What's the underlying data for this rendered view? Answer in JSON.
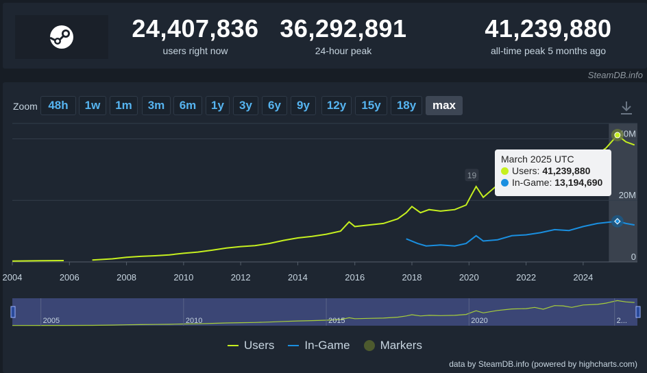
{
  "stats": [
    {
      "value": "24,407,836",
      "label": "users right now"
    },
    {
      "value": "36,292,891",
      "label": "24-hour peak"
    },
    {
      "value": "41,239,880",
      "label": "all-time peak 5 months ago"
    }
  ],
  "attribution_top": "SteamDB.info",
  "zoom": {
    "label": "Zoom",
    "options": [
      "48h",
      "1w",
      "1m",
      "3m",
      "6m",
      "1y",
      "3y",
      "6y",
      "9y",
      "12y",
      "15y",
      "18y",
      "max"
    ],
    "selected": "max"
  },
  "tooltip": {
    "title": "March 2025 UTC",
    "users_label": "Users:",
    "users_value": "41,239,880",
    "ingame_label": "In-Game:",
    "ingame_value": "13,194,690"
  },
  "marker_label": "19",
  "footer": "data by SteamDB.info (powered by highcharts.com)",
  "chart_data": {
    "type": "line",
    "x_ticks": [
      "2004",
      "2006",
      "2008",
      "2010",
      "2012",
      "2014",
      "2016",
      "2018",
      "2020",
      "2022",
      "2024"
    ],
    "y_ticks": [
      "0",
      "20M",
      "40M"
    ],
    "ylim": [
      0,
      45000000
    ],
    "navigator_ticks": [
      "2005",
      "2010",
      "2015",
      "2020",
      "2..."
    ],
    "colors": {
      "users": "#c6f01f",
      "ingame": "#1a8fe0",
      "markers": "#4d5a2e"
    },
    "series": [
      {
        "name": "Users",
        "color": "#c6f01f",
        "points": [
          [
            2004.0,
            0.3
          ],
          [
            2005.0,
            0.4
          ],
          [
            2005.8,
            0.45
          ],
          [
            2006.8,
            0.6
          ],
          [
            2007.5,
            1.0
          ],
          [
            2008.0,
            1.5
          ],
          [
            2008.5,
            1.8
          ],
          [
            2009.0,
            2.0
          ],
          [
            2009.5,
            2.3
          ],
          [
            2010.0,
            2.8
          ],
          [
            2010.5,
            3.2
          ],
          [
            2011.0,
            3.8
          ],
          [
            2011.5,
            4.5
          ],
          [
            2012.0,
            5.0
          ],
          [
            2012.5,
            5.3
          ],
          [
            2013.0,
            6.0
          ],
          [
            2013.5,
            7.0
          ],
          [
            2014.0,
            7.8
          ],
          [
            2014.5,
            8.3
          ],
          [
            2015.0,
            9.0
          ],
          [
            2015.5,
            10.0
          ],
          [
            2015.8,
            13.0
          ],
          [
            2016.0,
            11.5
          ],
          [
            2016.5,
            12.0
          ],
          [
            2017.0,
            12.5
          ],
          [
            2017.5,
            14.0
          ],
          [
            2017.8,
            16.0
          ],
          [
            2018.0,
            18.0
          ],
          [
            2018.3,
            16.0
          ],
          [
            2018.6,
            17.0
          ],
          [
            2019.0,
            16.5
          ],
          [
            2019.5,
            17.0
          ],
          [
            2019.9,
            18.5
          ],
          [
            2020.1,
            22.0
          ],
          [
            2020.25,
            24.5
          ],
          [
            2020.5,
            21.0
          ],
          [
            2021.0,
            25.0
          ],
          [
            2021.5,
            27.5
          ],
          [
            2022.0,
            28.0
          ],
          [
            2022.3,
            30.0
          ],
          [
            2022.6,
            27.0
          ],
          [
            2023.0,
            33.0
          ],
          [
            2023.3,
            32.5
          ],
          [
            2023.6,
            30.0
          ],
          [
            2024.0,
            34.0
          ],
          [
            2024.5,
            35.0
          ],
          [
            2024.8,
            37.0
          ],
          [
            2025.2,
            41.2
          ],
          [
            2025.5,
            39.0
          ],
          [
            2025.8,
            38.0
          ]
        ]
      },
      {
        "name": "In-Game",
        "color": "#1a8fe0",
        "points": [
          [
            2017.8,
            7.5
          ],
          [
            2018.2,
            6.0
          ],
          [
            2018.5,
            5.2
          ],
          [
            2019.0,
            5.5
          ],
          [
            2019.5,
            5.2
          ],
          [
            2019.9,
            6.0
          ],
          [
            2020.25,
            8.5
          ],
          [
            2020.5,
            6.8
          ],
          [
            2021.0,
            7.2
          ],
          [
            2021.5,
            8.5
          ],
          [
            2022.0,
            8.8
          ],
          [
            2022.5,
            9.5
          ],
          [
            2023.0,
            10.5
          ],
          [
            2023.5,
            10.2
          ],
          [
            2024.0,
            11.5
          ],
          [
            2024.5,
            12.5
          ],
          [
            2025.0,
            13.0
          ],
          [
            2025.2,
            13.2
          ],
          [
            2025.5,
            12.5
          ],
          [
            2025.8,
            12.0
          ]
        ]
      }
    ],
    "markers": [
      {
        "x": 2020.1,
        "label": "19"
      }
    ],
    "legend": [
      "Users",
      "In-Game",
      "Markers"
    ]
  }
}
